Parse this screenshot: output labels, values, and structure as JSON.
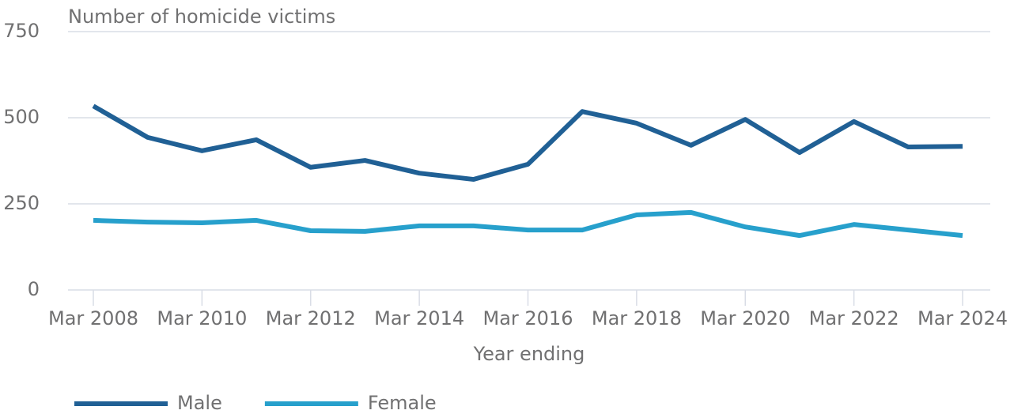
{
  "chart_data": {
    "type": "line",
    "y_label": "Number of homicide victims",
    "x_label": "Year ending",
    "categories": [
      "Mar 2008",
      null,
      "Mar 2010",
      null,
      "Mar 2012",
      null,
      "Mar 2014",
      null,
      "Mar 2016",
      null,
      "Mar 2018",
      null,
      "Mar 2020",
      null,
      "Mar 2022",
      null,
      "Mar 2024"
    ],
    "series": [
      {
        "name": "Male",
        "color": "#206095",
        "values": [
          534,
          443,
          404,
          436,
          356,
          376,
          339,
          321,
          365,
          518,
          484,
          420,
          495,
          399,
          489,
          415,
          417
        ]
      },
      {
        "name": "Female",
        "color": "#27a0cc",
        "values": [
          202,
          197,
          195,
          202,
          172,
          170,
          186,
          186,
          174,
          174,
          218,
          225,
          183,
          158,
          190,
          174,
          158
        ]
      }
    ],
    "ylim": [
      0,
      750
    ],
    "yticks": [
      0,
      250,
      500,
      750
    ],
    "grid": true
  }
}
